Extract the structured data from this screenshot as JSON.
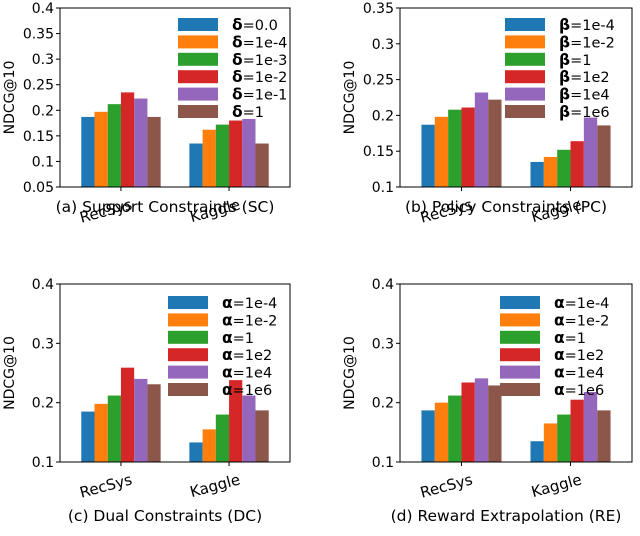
{
  "colors": [
    "#1f77b4",
    "#ff7f0e",
    "#2ca02c",
    "#d62728",
    "#9467bd",
    "#8c564b"
  ],
  "chart_data": [
    {
      "type": "bar",
      "title": "(a) Support Constraints (SC)",
      "xlabel": "",
      "ylabel": "NDCG@10",
      "ylim": [
        0.05,
        0.4
      ],
      "yticks": [
        "0.05",
        "0.1",
        "0.15",
        "0.2",
        "0.25",
        "0.3",
        "0.35",
        "0.4"
      ],
      "categories": [
        "RecSys",
        "Kaggle"
      ],
      "legend_position": "upper-right",
      "legend_param": "δ",
      "series": [
        {
          "name": "0.0",
          "values": [
            0.187,
            0.135
          ]
        },
        {
          "name": "1e-4",
          "values": [
            0.197,
            0.162
          ]
        },
        {
          "name": "1e-3",
          "values": [
            0.212,
            0.172
          ]
        },
        {
          "name": "1e-2",
          "values": [
            0.235,
            0.18
          ]
        },
        {
          "name": "1e-1",
          "values": [
            0.223,
            0.183
          ]
        },
        {
          "name": "1",
          "values": [
            0.187,
            0.135
          ]
        }
      ]
    },
    {
      "type": "bar",
      "title": "(b) Policy Constraints (PC)",
      "xlabel": "",
      "ylabel": "NDCG@10",
      "ylim": [
        0.1,
        0.35
      ],
      "yticks": [
        "0.1",
        "0.15",
        "0.2",
        "0.25",
        "0.3",
        "0.35"
      ],
      "categories": [
        "RecSys",
        "Kaggle"
      ],
      "legend_position": "upper-right",
      "legend_param": "β",
      "series": [
        {
          "name": "1e-4",
          "values": [
            0.187,
            0.135
          ]
        },
        {
          "name": "1e-2",
          "values": [
            0.198,
            0.142
          ]
        },
        {
          "name": "1",
          "values": [
            0.208,
            0.152
          ]
        },
        {
          "name": "1e2",
          "values": [
            0.211,
            0.164
          ]
        },
        {
          "name": "1e4",
          "values": [
            0.232,
            0.197
          ]
        },
        {
          "name": "1e6",
          "values": [
            0.222,
            0.186
          ]
        }
      ]
    },
    {
      "type": "bar",
      "title": "(c) Dual Constraints (DC)",
      "xlabel": "",
      "ylabel": "NDCG@10",
      "ylim": [
        0.1,
        0.4
      ],
      "yticks": [
        "0.1",
        "0.2",
        "0.3",
        "0.4"
      ],
      "categories": [
        "RecSys",
        "Kaggle"
      ],
      "legend_position": "upper-right",
      "legend_param": "α",
      "series": [
        {
          "name": "1e-4",
          "values": [
            0.185,
            0.133
          ]
        },
        {
          "name": "1e-2",
          "values": [
            0.198,
            0.155
          ]
        },
        {
          "name": "1",
          "values": [
            0.212,
            0.18
          ]
        },
        {
          "name": "1e2",
          "values": [
            0.259,
            0.238
          ]
        },
        {
          "name": "1e4",
          "values": [
            0.24,
            0.212
          ]
        },
        {
          "name": "1e6",
          "values": [
            0.231,
            0.187
          ]
        }
      ]
    },
    {
      "type": "bar",
      "title": "(d) Reward Extrapolation (RE)",
      "xlabel": "",
      "ylabel": "NDCG@10",
      "ylim": [
        0.1,
        0.4
      ],
      "yticks": [
        "0.1",
        "0.2",
        "0.3",
        "0.4"
      ],
      "categories": [
        "RecSys",
        "Kaggle"
      ],
      "legend_position": "upper-right",
      "legend_param": "α",
      "series": [
        {
          "name": "1e-4",
          "values": [
            0.187,
            0.135
          ]
        },
        {
          "name": "1e-2",
          "values": [
            0.2,
            0.165
          ]
        },
        {
          "name": "1",
          "values": [
            0.212,
            0.18
          ]
        },
        {
          "name": "1e2",
          "values": [
            0.234,
            0.205
          ]
        },
        {
          "name": "1e4",
          "values": [
            0.241,
            0.218
          ]
        },
        {
          "name": "1e6",
          "values": [
            0.229,
            0.187
          ]
        }
      ]
    }
  ]
}
